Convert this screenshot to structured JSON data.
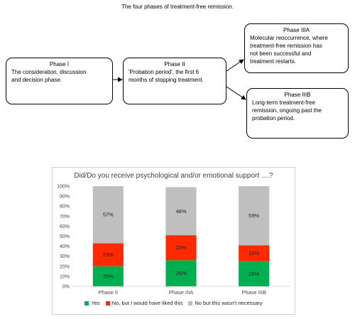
{
  "diagram": {
    "caption": "The four phases of treatment-free remission.",
    "boxes": [
      {
        "title": "Phase I",
        "body": [
          "The consideration, discussion",
          "and decision phase."
        ]
      },
      {
        "title": "Phase II",
        "body": [
          "'Probation period',  the first 6",
          "months of stopping treatment."
        ]
      },
      {
        "title": "Phase IIIA",
        "body": [
          "Molecular reoccurrence, where",
          "treatment-free remission has",
          "not been successful and",
          "treatment restarts."
        ]
      },
      {
        "title": "Phase IIIB",
        "body": [
          "Long-term treatment-free",
          "remission, ongoing past the",
          "probation period."
        ]
      }
    ]
  },
  "chart_data": {
    "type": "bar",
    "stacked": true,
    "percent_stacked": true,
    "title": "Did/Do you receive psychological and/or emotional support ....?",
    "categories": [
      "Phase II",
      "Phase IIIA",
      "Phase IIIB"
    ],
    "series": [
      {
        "name": "Yes",
        "values": [
          20,
          26,
          25
        ],
        "color": "#00b050"
      },
      {
        "name": "No, but I would have liked this",
        "values": [
          23,
          25,
          16
        ],
        "color": "#ff2a00"
      },
      {
        "name": "No but this wasn't necessary",
        "values": [
          57,
          48,
          59
        ],
        "color": "#bfbfbf"
      }
    ],
    "value_labels": [
      [
        "20%",
        "26%",
        "25%"
      ],
      [
        "23%",
        "25%",
        "16%"
      ],
      [
        "57%",
        "48%",
        "59%"
      ]
    ],
    "ylim": [
      0,
      100
    ],
    "yticks": [
      "0%",
      "10%",
      "20%",
      "30%",
      "40%",
      "50%",
      "60%",
      "70%",
      "80%",
      "90%",
      "100%"
    ],
    "grid": false,
    "legend_position": "bottom"
  }
}
